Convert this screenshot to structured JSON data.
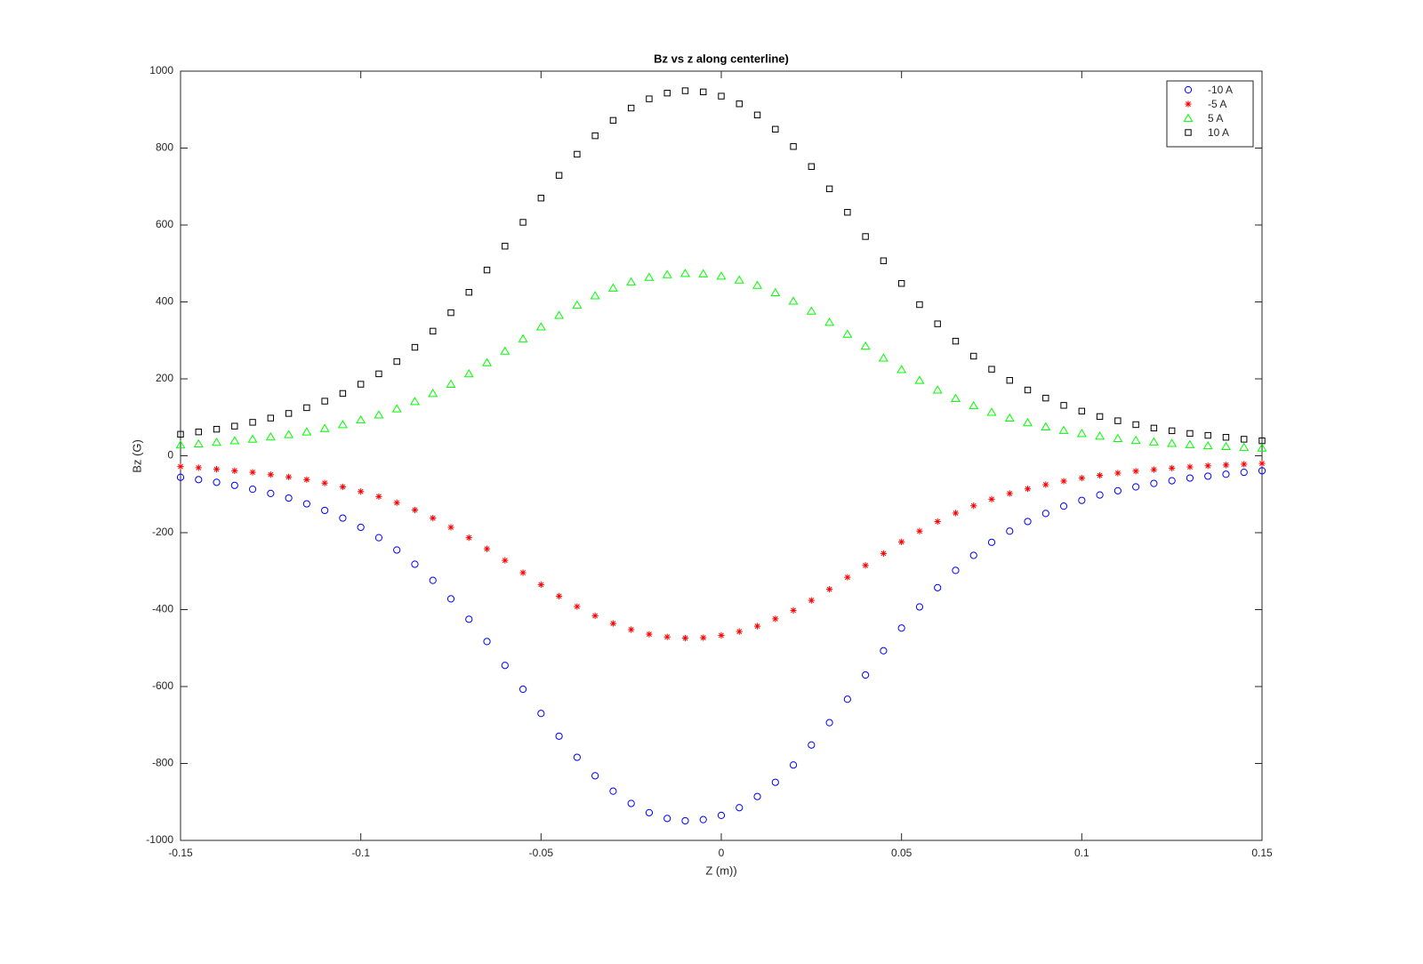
{
  "chart_data": {
    "type": "scatter",
    "title": "Bz vs z along centerline)",
    "x_label": "Z (m))",
    "y_label": "Bz (G)",
    "x": [
      -0.15,
      -0.145,
      -0.14,
      -0.135,
      -0.13,
      -0.125,
      -0.12,
      -0.115,
      -0.11,
      -0.105,
      -0.1,
      -0.095,
      -0.09,
      -0.085,
      -0.08,
      -0.075,
      -0.07,
      -0.065,
      -0.06,
      -0.055,
      -0.05,
      -0.045,
      -0.04,
      -0.035,
      -0.03,
      -0.025,
      -0.02,
      -0.015,
      -0.01,
      -0.005,
      0,
      0.005,
      0.01,
      0.015,
      0.02,
      0.025,
      0.03,
      0.035,
      0.04,
      0.045,
      0.05,
      0.055,
      0.06,
      0.065,
      0.07,
      0.075,
      0.08,
      0.085,
      0.09,
      0.095,
      0.1,
      0.105,
      0.11,
      0.115,
      0.12,
      0.125,
      0.13,
      0.135,
      0.14,
      0.145,
      0.15
    ],
    "series": [
      {
        "name": "-10 A",
        "color": "#0000ff",
        "marker": "o",
        "values": [
          -56,
          -62,
          -69,
          -77,
          -87,
          -98,
          -110,
          -125,
          -142,
          -162,
          -186,
          -213,
          -245,
          -282,
          -324,
          -372,
          -425,
          -483,
          -545,
          -607,
          -670,
          -729,
          -784,
          -832,
          -872,
          -904,
          -928,
          -943,
          -949,
          -946,
          -935,
          -915,
          -886,
          -849,
          -804,
          -752,
          -694,
          -633,
          -570,
          -507,
          -448,
          -393,
          -343,
          -298,
          -259,
          -225,
          -196,
          -171,
          -150,
          -131,
          -116,
          -102,
          -91,
          -81,
          -72,
          -65,
          -58,
          -53,
          -48,
          -43,
          -39
        ]
      },
      {
        "name": "-5 A",
        "color": "#ff0000",
        "marker": "*",
        "values": [
          -28,
          -31,
          -35,
          -39,
          -43,
          -49,
          -55,
          -62,
          -71,
          -81,
          -93,
          -106,
          -122,
          -141,
          -162,
          -186,
          -213,
          -242,
          -272,
          -304,
          -335,
          -365,
          -392,
          -416,
          -436,
          -452,
          -464,
          -471,
          -474,
          -473,
          -467,
          -457,
          -443,
          -424,
          -402,
          -376,
          -347,
          -316,
          -285,
          -254,
          -224,
          -196,
          -171,
          -149,
          -130,
          -113,
          -98,
          -86,
          -75,
          -66,
          -58,
          -51,
          -45,
          -40,
          -36,
          -32,
          -29,
          -26,
          -24,
          -22,
          -20
        ]
      },
      {
        "name": "5 A",
        "color": "#00ff00",
        "marker": "^",
        "values": [
          28,
          31,
          35,
          39,
          43,
          49,
          55,
          62,
          71,
          81,
          93,
          106,
          122,
          141,
          162,
          186,
          213,
          242,
          272,
          304,
          335,
          365,
          392,
          416,
          436,
          452,
          464,
          471,
          474,
          473,
          467,
          457,
          443,
          424,
          402,
          376,
          347,
          316,
          285,
          254,
          224,
          196,
          171,
          149,
          130,
          113,
          98,
          86,
          75,
          66,
          58,
          51,
          45,
          40,
          36,
          32,
          29,
          26,
          24,
          22,
          20
        ]
      },
      {
        "name": "10 A",
        "color": "#000000",
        "marker": "s",
        "values": [
          56,
          62,
          69,
          77,
          87,
          98,
          110,
          125,
          142,
          162,
          186,
          213,
          245,
          282,
          324,
          372,
          425,
          483,
          545,
          607,
          670,
          729,
          784,
          832,
          872,
          904,
          928,
          943,
          949,
          946,
          935,
          915,
          886,
          849,
          804,
          752,
          694,
          633,
          570,
          507,
          448,
          393,
          343,
          298,
          259,
          225,
          196,
          171,
          150,
          131,
          116,
          102,
          91,
          81,
          72,
          65,
          58,
          53,
          48,
          43,
          39
        ]
      }
    ],
    "xlim": [
      -0.15,
      0.15
    ],
    "xticks": [
      -0.15,
      -0.1,
      -0.05,
      0,
      0.05,
      0.1,
      0.15
    ],
    "ylim": [
      -1000,
      1000
    ],
    "yticks": [
      -1000,
      -800,
      -600,
      -400,
      -200,
      0,
      200,
      400,
      600,
      800,
      1000
    ],
    "grid": false,
    "legend": "upper right"
  }
}
